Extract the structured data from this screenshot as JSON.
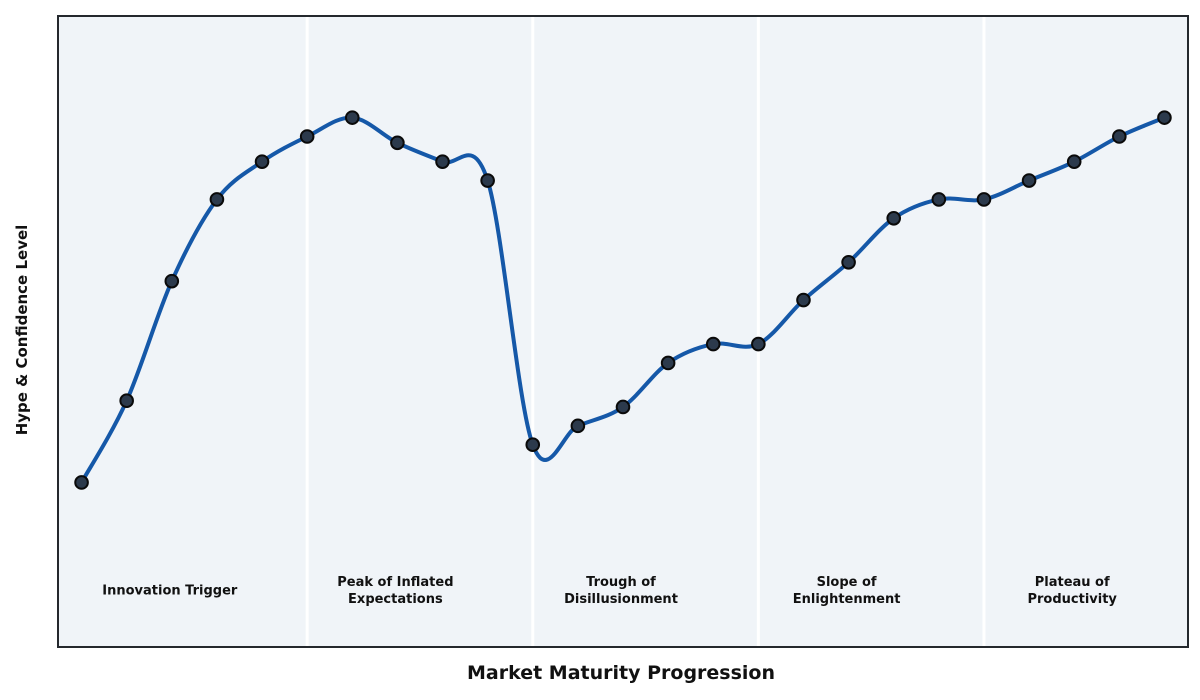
{
  "chart_data": {
    "type": "line",
    "title": "",
    "xlabel": "Market Maturity Progression",
    "ylabel": "Hype & Confidence Level",
    "x": [
      0,
      1,
      2,
      3,
      4,
      5,
      6,
      7,
      8,
      9,
      10,
      11,
      12,
      13,
      14,
      15,
      16,
      17,
      18,
      19,
      20,
      21,
      22,
      23,
      24
    ],
    "values": [
      26,
      39,
      58,
      71,
      77,
      81,
      84,
      80,
      77,
      74,
      32,
      35,
      38,
      45,
      48,
      48,
      55,
      61,
      68,
      71,
      71,
      74,
      77,
      81,
      84
    ],
    "xlim": [
      -0.5,
      24.5
    ],
    "ylim": [
      0,
      100
    ],
    "grid": false,
    "legend": "none",
    "axis_ticks": "none",
    "line_style": "smooth-spline",
    "marker": "circle",
    "phase_divider_x": [
      5,
      10,
      15,
      20
    ],
    "phase_label_y": 8.5,
    "phases": [
      {
        "x": 2,
        "lines": [
          "Innovation Trigger"
        ]
      },
      {
        "x": 7,
        "lines": [
          "Peak of Inflated",
          "Expectations"
        ]
      },
      {
        "x": 12,
        "lines": [
          "Trough of",
          "Disillusionment"
        ]
      },
      {
        "x": 17,
        "lines": [
          "Slope of",
          "Enlightenment"
        ]
      },
      {
        "x": 22,
        "lines": [
          "Plateau of",
          "Productivity"
        ]
      }
    ],
    "colors": {
      "line": "#1558a8",
      "marker_fill": "#2c3a4c",
      "marker_edge": "#0a0a0a",
      "plot_bg": "#f0f4f8",
      "divider": "#ffffff",
      "spine": "#24282d",
      "text": "#111111"
    }
  }
}
